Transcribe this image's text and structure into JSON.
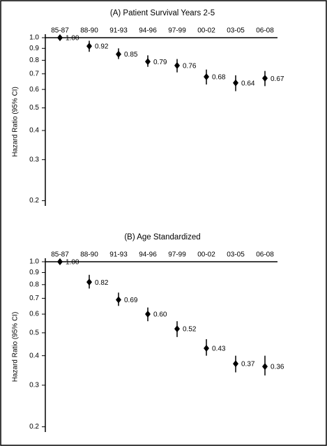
{
  "chart_data": [
    {
      "type": "errorbar",
      "title": "(A) Patient Survival Years 2-5",
      "y_label": "Hazard Ratio (95%  CI)",
      "log_scale": true,
      "color": "#000000",
      "categories": [
        "85-87",
        "88-90",
        "91-93",
        "94-96",
        "97-99",
        "00-02",
        "03-05",
        "06-08"
      ],
      "values": [
        1,
        0.92,
        0.85,
        0.79,
        0.76,
        0.68,
        0.64,
        0.67
      ],
      "value_labels": [
        "1.00",
        "0.92",
        "0.85",
        "0.79",
        "0.76",
        "0.68",
        "0.64",
        "0.67"
      ],
      "ci_lower": [
        null,
        0.87,
        0.81,
        0.75,
        0.71,
        0.63,
        0.59,
        0.62
      ],
      "ci_upper": [
        null,
        0.97,
        0.9,
        0.84,
        0.81,
        0.73,
        0.69,
        0.72
      ],
      "ylim": [
        0.19,
        1
      ],
      "yticks": [
        {
          "value": 1,
          "label": "1.0"
        },
        0.9,
        0.8,
        0.7,
        0.6,
        0.5,
        0.4,
        0.3,
        0.2
      ]
    },
    {
      "type": "errorbar",
      "title": "(B) Age Standardized",
      "y_label": "Hazard Ratio (95%  CI)",
      "log_scale": true,
      "color": "#000000",
      "categories": [
        "85-87",
        "88-90",
        "91-93",
        "94-96",
        "97-99",
        "00-02",
        "03-05",
        "06-08"
      ],
      "values": [
        1,
        0.82,
        0.69,
        0.6,
        0.52,
        0.43,
        0.37,
        0.36
      ],
      "value_labels": [
        "1.00",
        "0.82",
        "0.69",
        "0.60",
        "0.52",
        "0.43",
        "0.37",
        "0.36"
      ],
      "ci_lower": [
        null,
        0.77,
        0.65,
        0.56,
        0.48,
        0.4,
        0.34,
        0.33
      ],
      "ci_upper": [
        null,
        0.88,
        0.74,
        0.64,
        0.56,
        0.47,
        0.4,
        0.4
      ],
      "ylim": [
        0.19,
        1
      ],
      "yticks": [
        {
          "value": 1,
          "label": "1.0"
        },
        0.9,
        0.8,
        0.7,
        0.6,
        0.5,
        0.4,
        0.3,
        0.2
      ]
    }
  ]
}
